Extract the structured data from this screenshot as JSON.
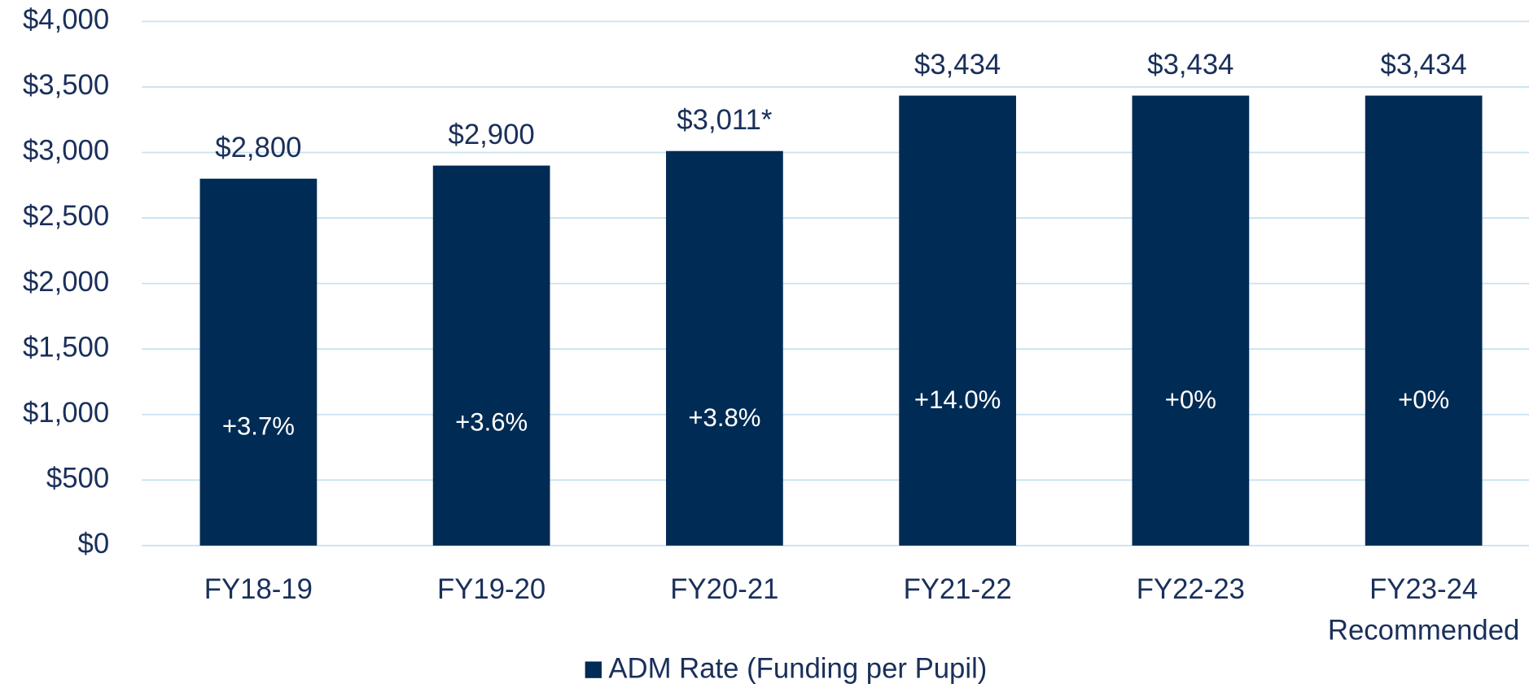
{
  "chart_data": {
    "type": "bar",
    "categories": [
      "FY18-19",
      "FY19-20",
      "FY20-21",
      "FY21-22",
      "FY22-23",
      "FY23-24 Recommended"
    ],
    "series": [
      {
        "name": "ADM Rate (Funding per Pupil)",
        "color": "#002b54",
        "values": [
          2800,
          2900,
          3011,
          3434,
          3434,
          3434
        ],
        "value_labels": [
          "$2,800",
          "$2,900",
          "$3,011*",
          "$3,434",
          "$3,434",
          "$3,434"
        ]
      }
    ],
    "annotations": [
      "+3.7%",
      "+3.6%",
      "+3.8%",
      "+14.0%",
      "+0%",
      "+0%"
    ],
    "ylim": [
      0,
      4000
    ],
    "yticks": [
      {
        "value": 0,
        "label": "$0"
      },
      {
        "value": 500,
        "label": "$500"
      },
      {
        "value": 1000,
        "label": "$1,000"
      },
      {
        "value": 1500,
        "label": "$1,500"
      },
      {
        "value": 2000,
        "label": "$2,000"
      },
      {
        "value": 2500,
        "label": "$2,500"
      },
      {
        "value": 3000,
        "label": "$3,000"
      },
      {
        "value": 3500,
        "label": "$3,500"
      },
      {
        "value": 4000,
        "label": "$4,000"
      }
    ],
    "grid": true,
    "legend": "bottom"
  }
}
